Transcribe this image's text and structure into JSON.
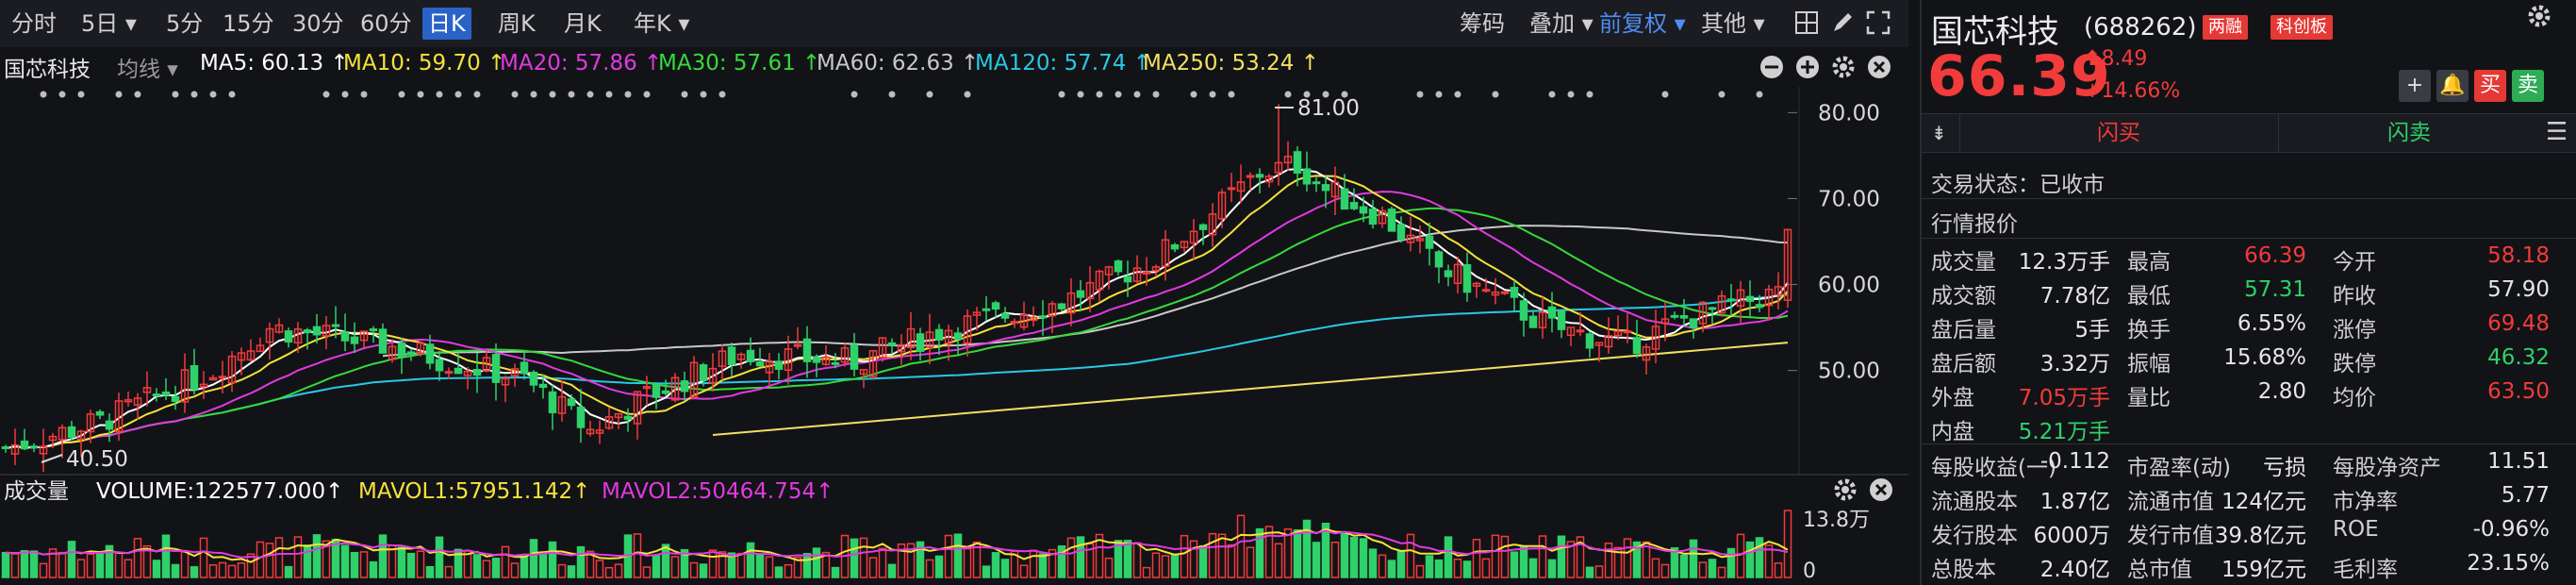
{
  "toolbar": {
    "periods": [
      "分时",
      "5日",
      "5分",
      "15分",
      "30分",
      "60分",
      "日K",
      "周K",
      "月K",
      "年K"
    ],
    "active_period": "日K",
    "right_items": [
      "筹码",
      "叠加",
      "前复权",
      "其他"
    ],
    "accent": "#2a63c7"
  },
  "indicator": {
    "stock_name": "国芯科技",
    "mode": "均线",
    "items": [
      {
        "text": "MA5: 60.13 ↑",
        "color": "#ffffff"
      },
      {
        "text": "MA10: 59.70 ↑",
        "color": "#f5e23a"
      },
      {
        "text": "MA20: 57.86 ↑",
        "color": "#e03ae0"
      },
      {
        "text": "MA30: 57.61 ↑",
        "color": "#36d93a"
      },
      {
        "text": "MA60: 62.63 ↑",
        "color": "#c8c8c8"
      },
      {
        "text": "MA120: 57.74 ↑",
        "color": "#27c9e6"
      },
      {
        "text": "MA250: 53.24 ↑",
        "color": "#f2e063"
      }
    ]
  },
  "chart_data": {
    "type": "candlestick",
    "y_ticks": [
      "80.00",
      "70.00",
      "60.00",
      "50.00"
    ],
    "ylim": [
      38,
      83
    ],
    "high_label": "81.00",
    "low_label": "40.50",
    "volume": {
      "title": "成交量",
      "items": [
        {
          "text": "VOLUME:122577.000↑",
          "color": "#ffffff"
        },
        {
          "text": "MAVOL1:57951.142↑",
          "color": "#f5e23a"
        },
        {
          "text": "MAVOL2:50464.754↑",
          "color": "#e03ae0"
        }
      ],
      "y_ticks": [
        "13.8万",
        "0"
      ]
    }
  },
  "quote": {
    "name": "国芯科技",
    "code": "(688262)",
    "badges": [
      "两融",
      "科创板"
    ],
    "price": "66.39",
    "change": "8.49",
    "change_pct": "+14.66%",
    "flash_buy": "闪买",
    "flash_sell": "闪卖",
    "buy_btn": "买",
    "sell_btn": "卖",
    "status": "交易状态：已收市",
    "section_title": "行情报价",
    "rows": [
      [
        [
          "成交量",
          "12.3万手",
          "white"
        ],
        [
          "最高",
          "66.39",
          "red"
        ],
        [
          "今开",
          "58.18",
          "red"
        ]
      ],
      [
        [
          "成交额",
          "7.78亿",
          "white"
        ],
        [
          "最低",
          "57.31",
          "green"
        ],
        [
          "昨收",
          "57.90",
          "white"
        ]
      ],
      [
        [
          "盘后量",
          "5手",
          "white"
        ],
        [
          "换手",
          "6.55%",
          "white"
        ],
        [
          "涨停",
          "69.48",
          "red"
        ]
      ],
      [
        [
          "盘后额",
          "3.32万",
          "white"
        ],
        [
          "振幅",
          "15.68%",
          "white"
        ],
        [
          "跌停",
          "46.32",
          "green"
        ]
      ],
      [
        [
          "外盘",
          "7.05万手",
          "red"
        ],
        [
          "量比",
          "2.80",
          "white"
        ],
        [
          "均价",
          "63.50",
          "red"
        ]
      ],
      [
        [
          "内盘",
          "5.21万手",
          "green"
        ]
      ]
    ],
    "rows2": [
      [
        [
          "每股收益(一)",
          "-0.112",
          "white"
        ],
        [
          "市盈率(动)",
          "亏损",
          "white"
        ],
        [
          "每股净资产",
          "11.51",
          "white"
        ]
      ],
      [
        [
          "流通股本",
          "1.87亿",
          "white"
        ],
        [
          "流通市值",
          "124亿元",
          "white"
        ],
        [
          "市净率",
          "5.77",
          "white"
        ]
      ],
      [
        [
          "发行股本",
          "6000万",
          "white"
        ],
        [
          "发行市值",
          "39.8亿元",
          "white"
        ],
        [
          "ROE",
          "-0.96%",
          "white"
        ]
      ],
      [
        [
          "总股本",
          "2.40亿",
          "white"
        ],
        [
          "总市值",
          "159亿元",
          "white"
        ],
        [
          "毛利率",
          "23.15%",
          "white"
        ]
      ]
    ]
  }
}
